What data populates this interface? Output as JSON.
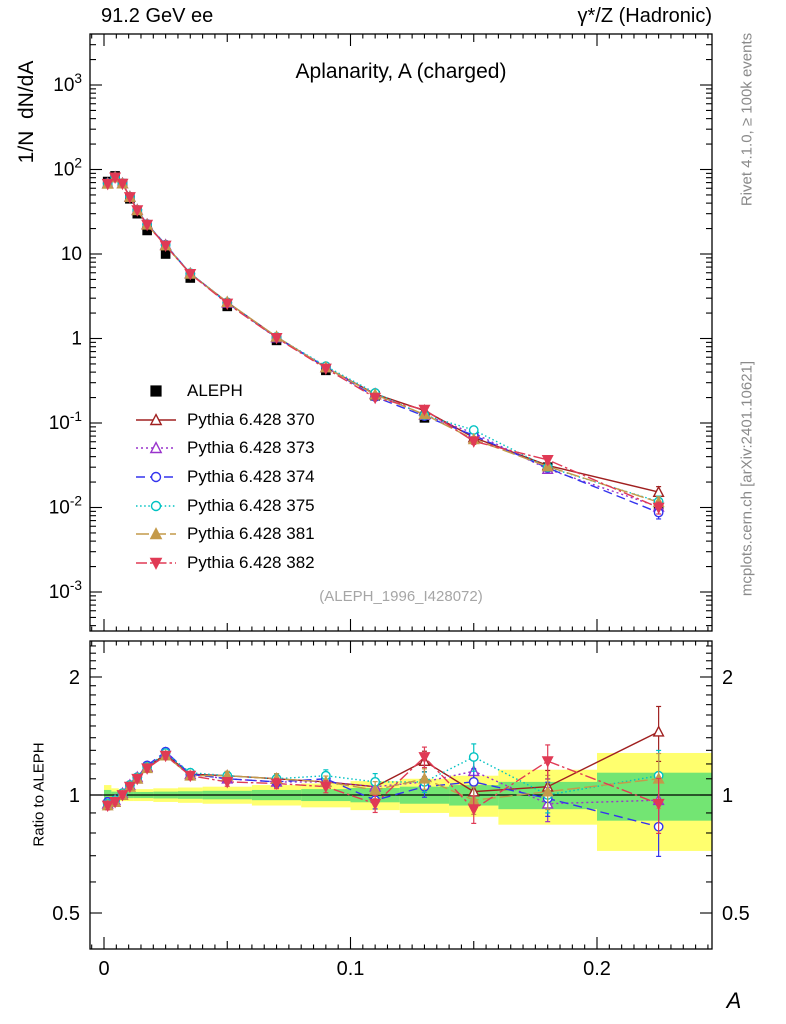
{
  "header": {
    "left": "91.2 GeV ee",
    "right": "γ*/Z (Hadronic)"
  },
  "side_notes": {
    "top_right": "Rivet 4.1.0, ≥ 100k events",
    "bottom_right": "mcplots.cern.ch [arXiv:2401.10621]"
  },
  "main_panel": {
    "title": "Aplanarity, A (charged)",
    "ylabel": "1/N  dN/dA",
    "watermark": "(ALEPH_1996_I428072)",
    "ytick_values": [
      1000,
      100,
      10,
      1,
      0.1,
      0.01,
      0.001
    ],
    "ytick_labels": [
      "10^3",
      "10^2",
      "10",
      "1",
      "10^-1",
      "10^-2",
      "10^-3"
    ]
  },
  "ratio_panel": {
    "ylabel": "Ratio to ALEPH",
    "ytick_values": [
      2,
      1,
      0.5
    ],
    "ytick_labels": [
      "2",
      "1",
      "0.5"
    ]
  },
  "x_axis": {
    "label": "A",
    "tick_values": [
      0,
      0.1,
      0.2
    ],
    "tick_labels": [
      "0",
      "0.1",
      "0.2"
    ]
  },
  "legend": {
    "entries": [
      {
        "label": "ALEPH"
      },
      {
        "label": "Pythia 6.428 370"
      },
      {
        "label": "Pythia 6.428 373"
      },
      {
        "label": "Pythia 6.428 374"
      },
      {
        "label": "Pythia 6.428 375"
      },
      {
        "label": "Pythia 6.428 381"
      },
      {
        "label": "Pythia 6.428 382"
      }
    ]
  },
  "chart_data": {
    "type": "line",
    "title": "Aplanarity, A (charged)",
    "xlabel": "A",
    "ylabel": "1/N dN/dA",
    "x_range": [
      0,
      0.25
    ],
    "y_scale": "log",
    "y_range": [
      0.001,
      1000
    ],
    "bin_edges": [
      0,
      0.003,
      0.006,
      0.009,
      0.012,
      0.015,
      0.02,
      0.03,
      0.04,
      0.06,
      0.08,
      0.1,
      0.12,
      0.14,
      0.16,
      0.2,
      0.25
    ],
    "x": [
      0.0015,
      0.0045,
      0.0075,
      0.0105,
      0.0135,
      0.0175,
      0.025,
      0.035,
      0.05,
      0.07,
      0.09,
      0.11,
      0.13,
      0.15,
      0.18,
      0.225
    ],
    "aleph": {
      "name": "ALEPH",
      "color": "#000000",
      "marker": "square",
      "marker_open": false,
      "values": [
        72,
        84,
        68,
        45,
        30,
        19,
        10,
        5.2,
        2.4,
        0.95,
        0.42,
        0.21,
        0.115,
        0.066,
        0.03,
        0.0105
      ]
    },
    "series": [
      {
        "name": "Pythia 6.428 370",
        "color": "#a02020",
        "line": "solid",
        "marker": "triangle-up",
        "marker_open": true,
        "ratio": [
          0.95,
          0.96,
          1.0,
          1.05,
          1.1,
          1.18,
          1.27,
          1.13,
          1.12,
          1.1,
          1.08,
          1.05,
          1.22,
          1.02,
          1.05,
          1.45
        ]
      },
      {
        "name": "Pythia 6.428 373",
        "color": "#9933cc",
        "line": "dotted",
        "marker": "triangle-up",
        "marker_open": true,
        "ratio": [
          0.95,
          0.97,
          1.01,
          1.06,
          1.11,
          1.18,
          1.28,
          1.13,
          1.1,
          1.08,
          1.08,
          1.05,
          1.08,
          1.15,
          0.95,
          0.97
        ]
      },
      {
        "name": "Pythia 6.428 374",
        "color": "#3333ee",
        "line": "dashed",
        "marker": "circle",
        "marker_open": true,
        "ratio": [
          0.96,
          0.97,
          1.01,
          1.06,
          1.11,
          1.19,
          1.29,
          1.13,
          1.1,
          1.08,
          1.1,
          0.97,
          1.05,
          1.08,
          0.98,
          0.83
        ]
      },
      {
        "name": "Pythia 6.428 375",
        "color": "#00c2c2",
        "line": "fine-dotted",
        "marker": "circle",
        "marker_open": true,
        "ratio": [
          0.95,
          0.97,
          1.01,
          1.06,
          1.11,
          1.18,
          1.28,
          1.14,
          1.12,
          1.1,
          1.12,
          1.08,
          1.08,
          1.25,
          1.0,
          1.12
        ]
      },
      {
        "name": "Pythia 6.428 381",
        "color": "#c49a4a",
        "line": "long-dashed",
        "marker": "triangle-up",
        "marker_open": false,
        "ratio": [
          0.94,
          0.96,
          1.0,
          1.05,
          1.1,
          1.17,
          1.26,
          1.12,
          1.12,
          1.1,
          1.08,
          1.03,
          1.1,
          0.97,
          1.02,
          1.1
        ]
      },
      {
        "name": "Pythia 6.428 382",
        "color": "#e03a55",
        "line": "dash-dot",
        "marker": "triangle-down",
        "marker_open": false,
        "ratio": [
          0.94,
          0.96,
          1.0,
          1.05,
          1.1,
          1.17,
          1.26,
          1.12,
          1.08,
          1.07,
          1.05,
          0.95,
          1.25,
          0.92,
          1.22,
          0.95
        ]
      }
    ],
    "rel_err": [
      0.025,
      0.015,
      0.015,
      0.015,
      0.018,
      0.02,
      0.02,
      0.022,
      0.025,
      0.03,
      0.035,
      0.05,
      0.06,
      0.08,
      0.1,
      0.16
    ],
    "ratio_panel": {
      "y_scale": "log",
      "y_range": [
        0.4,
        2.5
      ],
      "reference": 1
    },
    "bands": {
      "yellow": {
        "color": "#ffff6e",
        "rel_halfwidth": [
          0.06,
          0.04,
          0.035,
          0.035,
          0.035,
          0.035,
          0.04,
          0.045,
          0.05,
          0.06,
          0.07,
          0.085,
          0.1,
          0.12,
          0.16,
          0.28
        ]
      },
      "green": {
        "color": "#73e573",
        "rel_halfwidth": [
          0.03,
          0.02,
          0.018,
          0.018,
          0.018,
          0.018,
          0.02,
          0.022,
          0.025,
          0.03,
          0.035,
          0.042,
          0.05,
          0.06,
          0.08,
          0.14
        ]
      }
    }
  }
}
